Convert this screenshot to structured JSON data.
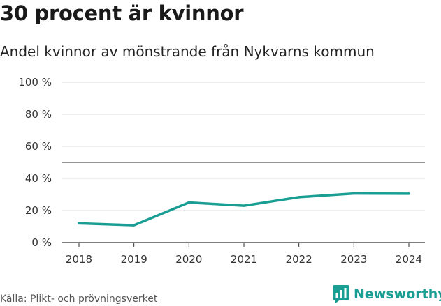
{
  "chart_data": {
    "type": "line",
    "title": "30 procent är kvinnor",
    "subtitle": "Andel kvinnor av mönstrande från Nykvarns kommun",
    "categories": [
      "2018",
      "2019",
      "2020",
      "2021",
      "2022",
      "2023",
      "2024"
    ],
    "series": [
      {
        "name": "Andel kvinnor",
        "values": [
          12,
          10.8,
          25,
          23,
          28.3,
          30.6,
          30.5
        ]
      }
    ],
    "reference_line": 50,
    "ylim": [
      0,
      100
    ],
    "yticks": [
      0,
      20,
      40,
      60,
      80,
      100
    ],
    "ytick_labels": [
      "0 %",
      "20 %",
      "40 %",
      "60 %",
      "80 %",
      "100 %"
    ],
    "xlabel": "",
    "ylabel": "",
    "line_color": "#1a9e93",
    "grid": true
  },
  "footer": {
    "source": "Källa: Plikt- och prövningsverket",
    "brand": "Newsworthy",
    "brand_icon": "bar-chart-icon",
    "brand_color": "#1a9e93"
  }
}
